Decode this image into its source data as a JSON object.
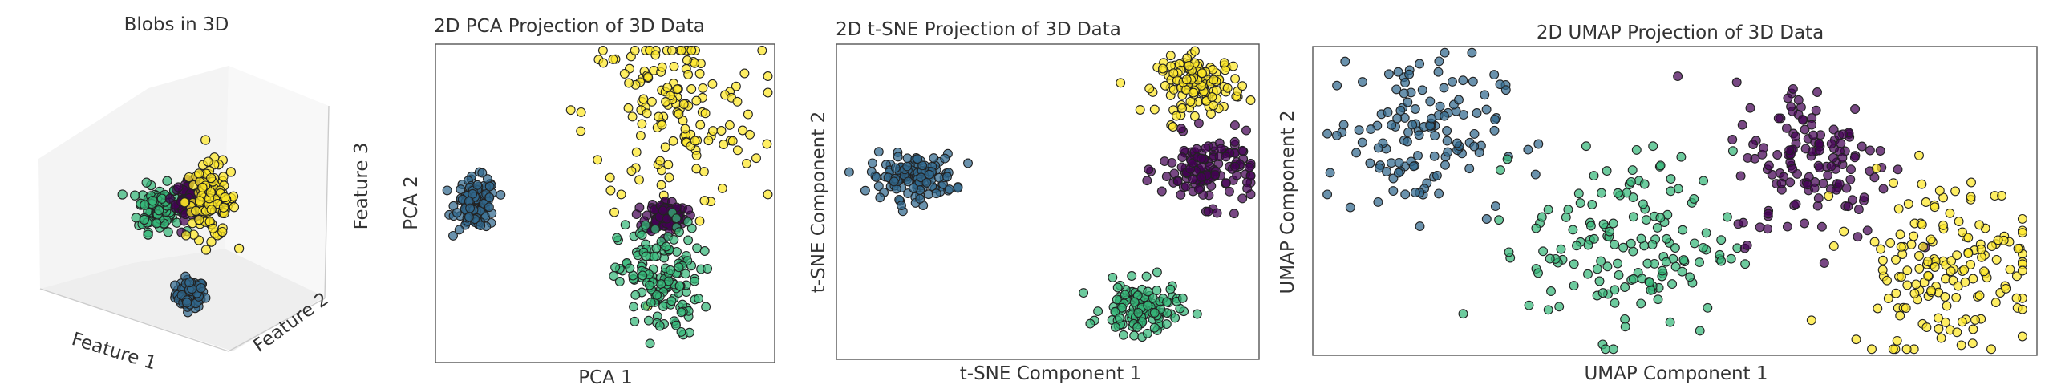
{
  "colors": {
    "purple": "#440154",
    "blue": "#31688e",
    "teal": "#35b779",
    "yellow": "#fde725"
  },
  "chart_data": [
    {
      "type": "scatter",
      "projection": "3d",
      "title": "Blobs in 3D",
      "xlabel": "Feature 1",
      "ylabel": "Feature 2",
      "zlabel": "Feature 3",
      "grid": false,
      "clusters": [
        {
          "color": "#31688e",
          "center": [
            0.45,
            0.15
          ],
          "spread": [
            0.035,
            0.03
          ],
          "n": 90
        },
        {
          "color": "#35b779",
          "center": [
            0.3,
            0.52
          ],
          "spread": [
            0.05,
            0.05
          ],
          "n": 110
        },
        {
          "color": "#440154",
          "center": [
            0.44,
            0.55
          ],
          "spread": [
            0.03,
            0.04
          ],
          "n": 70
        },
        {
          "color": "#fde725",
          "center": [
            0.55,
            0.55
          ],
          "spread": [
            0.06,
            0.08
          ],
          "n": 120
        }
      ]
    },
    {
      "type": "scatter",
      "title": "2D PCA Projection of 3D Data",
      "xlabel": "PCA 1",
      "ylabel": "PCA 2",
      "grid": false,
      "clusters": [
        {
          "color": "#31688e",
          "center": [
            0.12,
            0.5
          ],
          "spread": [
            0.03,
            0.04
          ],
          "n": 110
        },
        {
          "color": "#fde725",
          "center": [
            0.7,
            0.78
          ],
          "spread": [
            0.13,
            0.15
          ],
          "n": 150
        },
        {
          "color": "#440154",
          "center": [
            0.68,
            0.46
          ],
          "spread": [
            0.03,
            0.025
          ],
          "n": 100
        },
        {
          "color": "#35b779",
          "center": [
            0.66,
            0.26
          ],
          "spread": [
            0.06,
            0.09
          ],
          "n": 150
        }
      ]
    },
    {
      "type": "scatter",
      "title": "2D t-SNE Projection of 3D Data",
      "xlabel": "t-SNE Component 1",
      "ylabel": "t-SNE Component 2",
      "grid": false,
      "clusters": [
        {
          "color": "#31688e",
          "center": [
            0.18,
            0.58
          ],
          "spread": [
            0.05,
            0.035
          ],
          "n": 130
        },
        {
          "color": "#fde725",
          "center": [
            0.86,
            0.87
          ],
          "spread": [
            0.05,
            0.045
          ],
          "n": 130
        },
        {
          "color": "#440154",
          "center": [
            0.88,
            0.6
          ],
          "spread": [
            0.055,
            0.055
          ],
          "n": 130
        },
        {
          "color": "#35b779",
          "center": [
            0.72,
            0.16
          ],
          "spread": [
            0.045,
            0.04
          ],
          "n": 130
        }
      ]
    },
    {
      "type": "scatter",
      "title": "2D UMAP Projection of 3D Data",
      "xlabel": "UMAP Component 1",
      "ylabel": "UMAP Component 2",
      "grid": false,
      "clusters": [
        {
          "color": "#31688e",
          "center": [
            0.14,
            0.72
          ],
          "spread": [
            0.06,
            0.13
          ],
          "n": 130
        },
        {
          "color": "#35b779",
          "center": [
            0.44,
            0.36
          ],
          "spread": [
            0.07,
            0.15
          ],
          "n": 150
        },
        {
          "color": "#440154",
          "center": [
            0.69,
            0.63
          ],
          "spread": [
            0.055,
            0.13
          ],
          "n": 140
        },
        {
          "color": "#fde725",
          "center": [
            0.87,
            0.3
          ],
          "spread": [
            0.065,
            0.14
          ],
          "n": 160
        }
      ]
    }
  ]
}
